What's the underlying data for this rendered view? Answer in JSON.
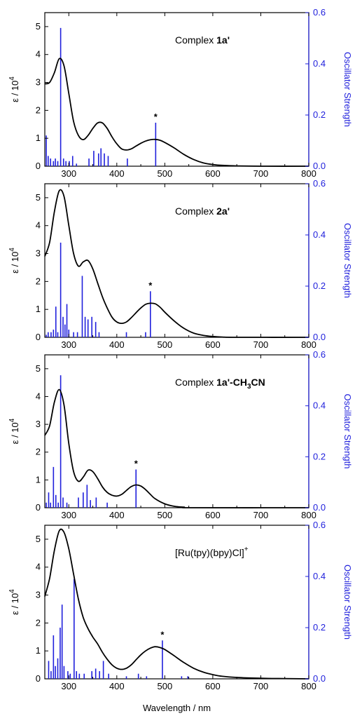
{
  "chart_data": [
    {
      "type": "line",
      "title": "Complex ",
      "title_bold": "1a'",
      "title_sub": "",
      "title_tail": "",
      "ylabel_left": "ε / 10",
      "ylabel_left_sup": "4",
      "ylabel_right": "Oscillator Strength",
      "xlim": [
        250,
        800
      ],
      "ylim_left": [
        0,
        5.5
      ],
      "ylim_right": [
        0,
        0.6
      ],
      "xticks": [
        300,
        400,
        500,
        600,
        700,
        800
      ],
      "yticks_left": [
        0,
        1,
        2,
        3,
        4,
        5
      ],
      "yticks_right": [
        "0.0",
        "0.2",
        "0.4",
        "0.6"
      ],
      "yticks_right_values": [
        0,
        0.2,
        0.4,
        0.6
      ],
      "absorption_curve": [
        [
          250,
          2.95
        ],
        [
          260,
          3.0
        ],
        [
          270,
          3.35
        ],
        [
          280,
          3.85
        ],
        [
          290,
          3.6
        ],
        [
          300,
          2.6
        ],
        [
          310,
          1.6
        ],
        [
          320,
          1.1
        ],
        [
          330,
          0.95
        ],
        [
          340,
          1.1
        ],
        [
          350,
          1.35
        ],
        [
          360,
          1.55
        ],
        [
          370,
          1.55
        ],
        [
          380,
          1.35
        ],
        [
          390,
          1.05
        ],
        [
          400,
          0.8
        ],
        [
          410,
          0.62
        ],
        [
          420,
          0.58
        ],
        [
          430,
          0.62
        ],
        [
          440,
          0.72
        ],
        [
          450,
          0.82
        ],
        [
          460,
          0.9
        ],
        [
          470,
          0.95
        ],
        [
          480,
          0.96
        ],
        [
          490,
          0.93
        ],
        [
          500,
          0.85
        ],
        [
          520,
          0.65
        ],
        [
          540,
          0.42
        ],
        [
          560,
          0.24
        ],
        [
          580,
          0.12
        ],
        [
          600,
          0.06
        ],
        [
          620,
          0.03
        ],
        [
          650,
          0.01
        ],
        [
          700,
          0.0
        ],
        [
          800,
          0.0
        ]
      ],
      "oscillator_sticks": [
        [
          253,
          0.12
        ],
        [
          257,
          0.04
        ],
        [
          262,
          0.03
        ],
        [
          268,
          0.02
        ],
        [
          272,
          0.03
        ],
        [
          277,
          0.02
        ],
        [
          283,
          0.54
        ],
        [
          289,
          0.03
        ],
        [
          294,
          0.02
        ],
        [
          301,
          0.02
        ],
        [
          308,
          0.04
        ],
        [
          316,
          0.01
        ],
        [
          342,
          0.03
        ],
        [
          352,
          0.06
        ],
        [
          362,
          0.05
        ],
        [
          367,
          0.07
        ],
        [
          374,
          0.05
        ],
        [
          382,
          0.04
        ],
        [
          422,
          0.03
        ],
        [
          481,
          0.17
        ]
      ],
      "annotation": "*",
      "annotation_x": 481
    },
    {
      "type": "line",
      "title": "Complex ",
      "title_bold": "2a'",
      "title_sub": "",
      "title_tail": "",
      "ylabel_left": "ε / 10",
      "ylabel_left_sup": "4",
      "ylabel_right": "Oscillator Strength",
      "xlim": [
        250,
        800
      ],
      "ylim_left": [
        0,
        5.5
      ],
      "ylim_right": [
        0,
        0.6
      ],
      "xticks": [
        300,
        400,
        500,
        600,
        700,
        800
      ],
      "yticks_left": [
        0,
        1,
        2,
        3,
        4,
        5
      ],
      "yticks_right": [
        "0.0",
        "0.2",
        "0.4",
        "0.6"
      ],
      "yticks_right_values": [
        0,
        0.2,
        0.4,
        0.6
      ],
      "absorption_curve": [
        [
          250,
          2.9
        ],
        [
          260,
          3.4
        ],
        [
          270,
          4.5
        ],
        [
          280,
          5.25
        ],
        [
          290,
          5.05
        ],
        [
          300,
          4.0
        ],
        [
          310,
          3.0
        ],
        [
          320,
          2.55
        ],
        [
          330,
          2.7
        ],
        [
          340,
          2.75
        ],
        [
          350,
          2.45
        ],
        [
          360,
          1.95
        ],
        [
          370,
          1.45
        ],
        [
          380,
          1.05
        ],
        [
          390,
          0.72
        ],
        [
          400,
          0.55
        ],
        [
          410,
          0.5
        ],
        [
          420,
          0.55
        ],
        [
          430,
          0.7
        ],
        [
          440,
          0.88
        ],
        [
          450,
          1.05
        ],
        [
          460,
          1.18
        ],
        [
          470,
          1.22
        ],
        [
          480,
          1.2
        ],
        [
          490,
          1.08
        ],
        [
          500,
          0.9
        ],
        [
          520,
          0.58
        ],
        [
          540,
          0.32
        ],
        [
          560,
          0.15
        ],
        [
          580,
          0.07
        ],
        [
          600,
          0.03
        ],
        [
          620,
          0.01
        ],
        [
          650,
          0.0
        ],
        [
          800,
          0.0
        ]
      ],
      "oscillator_sticks": [
        [
          253,
          0.01
        ],
        [
          257,
          0.02
        ],
        [
          263,
          0.02
        ],
        [
          268,
          0.03
        ],
        [
          273,
          0.12
        ],
        [
          277,
          0.02
        ],
        [
          283,
          0.37
        ],
        [
          288,
          0.08
        ],
        [
          292,
          0.05
        ],
        [
          296,
          0.13
        ],
        [
          300,
          0.03
        ],
        [
          310,
          0.02
        ],
        [
          318,
          0.02
        ],
        [
          328,
          0.24
        ],
        [
          334,
          0.08
        ],
        [
          340,
          0.07
        ],
        [
          348,
          0.08
        ],
        [
          356,
          0.06
        ],
        [
          363,
          0.02
        ],
        [
          420,
          0.02
        ],
        [
          460,
          0.02
        ],
        [
          470,
          0.18
        ]
      ],
      "annotation": "*",
      "annotation_x": 470
    },
    {
      "type": "line",
      "title": "Complex ",
      "title_bold": "1a'-CH",
      "title_sub": "3",
      "title_tail": "CN",
      "ylabel_left": "ε / 10",
      "ylabel_left_sup": "4",
      "ylabel_right": "Oscillator Strength",
      "xlim": [
        250,
        800
      ],
      "ylim_left": [
        0,
        5.5
      ],
      "ylim_right": [
        0,
        0.6
      ],
      "xticks": [
        300,
        400,
        500,
        600,
        700,
        800
      ],
      "yticks_left": [
        0,
        1,
        2,
        3,
        4,
        5
      ],
      "yticks_right": [
        "0.0",
        "0.2",
        "0.4",
        "0.6"
      ],
      "yticks_right_values": [
        0,
        0.2,
        0.4,
        0.6
      ],
      "absorption_curve": [
        [
          250,
          2.6
        ],
        [
          260,
          2.95
        ],
        [
          270,
          3.8
        ],
        [
          280,
          4.25
        ],
        [
          290,
          3.7
        ],
        [
          300,
          2.3
        ],
        [
          310,
          1.3
        ],
        [
          320,
          0.95
        ],
        [
          330,
          1.1
        ],
        [
          340,
          1.35
        ],
        [
          350,
          1.3
        ],
        [
          360,
          1.05
        ],
        [
          370,
          0.75
        ],
        [
          380,
          0.55
        ],
        [
          390,
          0.45
        ],
        [
          400,
          0.42
        ],
        [
          410,
          0.48
        ],
        [
          420,
          0.62
        ],
        [
          430,
          0.76
        ],
        [
          440,
          0.82
        ],
        [
          450,
          0.78
        ],
        [
          460,
          0.65
        ],
        [
          470,
          0.48
        ],
        [
          480,
          0.32
        ],
        [
          500,
          0.14
        ],
        [
          520,
          0.05
        ],
        [
          540,
          0.02
        ],
        [
          560,
          0.0
        ],
        [
          800,
          0.0
        ]
      ],
      "oscillator_sticks": [
        [
          253,
          0.02
        ],
        [
          258,
          0.06
        ],
        [
          262,
          0.02
        ],
        [
          268,
          0.16
        ],
        [
          273,
          0.05
        ],
        [
          278,
          0.02
        ],
        [
          283,
          0.52
        ],
        [
          288,
          0.04
        ],
        [
          296,
          0.02
        ],
        [
          320,
          0.04
        ],
        [
          330,
          0.06
        ],
        [
          338,
          0.09
        ],
        [
          345,
          0.03
        ],
        [
          357,
          0.04
        ],
        [
          380,
          0.02
        ],
        [
          440,
          0.15
        ]
      ],
      "annotation": "*",
      "annotation_x": 440
    },
    {
      "type": "line",
      "title": "[Ru(tpy)(bpy)Cl]",
      "title_bold": "",
      "title_sub": "",
      "title_tail": "",
      "title_sup": "+",
      "ylabel_left": "ε / 10",
      "ylabel_left_sup": "4",
      "ylabel_right": "Oscillator Strength",
      "xlabel": "Wavelength / nm",
      "xlim": [
        250,
        800
      ],
      "ylim_left": [
        0,
        5.5
      ],
      "ylim_right": [
        0,
        0.6
      ],
      "xticks": [
        300,
        400,
        500,
        600,
        700,
        800
      ],
      "yticks_left": [
        0,
        1,
        2,
        3,
        4,
        5
      ],
      "yticks_right": [
        "0.0",
        "0.2",
        "0.4",
        "0.6"
      ],
      "yticks_right_values": [
        0,
        0.2,
        0.4,
        0.6
      ],
      "absorption_curve": [
        [
          250,
          2.95
        ],
        [
          260,
          3.6
        ],
        [
          270,
          4.6
        ],
        [
          280,
          5.3
        ],
        [
          290,
          5.25
        ],
        [
          300,
          4.65
        ],
        [
          310,
          3.75
        ],
        [
          320,
          2.85
        ],
        [
          330,
          2.2
        ],
        [
          340,
          1.8
        ],
        [
          350,
          1.5
        ],
        [
          360,
          1.25
        ],
        [
          370,
          0.95
        ],
        [
          380,
          0.7
        ],
        [
          390,
          0.5
        ],
        [
          400,
          0.38
        ],
        [
          410,
          0.34
        ],
        [
          420,
          0.38
        ],
        [
          430,
          0.5
        ],
        [
          440,
          0.68
        ],
        [
          450,
          0.86
        ],
        [
          460,
          1.0
        ],
        [
          470,
          1.1
        ],
        [
          480,
          1.15
        ],
        [
          490,
          1.12
        ],
        [
          500,
          1.05
        ],
        [
          520,
          0.82
        ],
        [
          540,
          0.58
        ],
        [
          560,
          0.38
        ],
        [
          580,
          0.24
        ],
        [
          600,
          0.15
        ],
        [
          620,
          0.09
        ],
        [
          650,
          0.05
        ],
        [
          700,
          0.02
        ],
        [
          750,
          0.01
        ],
        [
          800,
          0.0
        ]
      ],
      "oscillator_sticks": [
        [
          258,
          0.07
        ],
        [
          263,
          0.03
        ],
        [
          268,
          0.17
        ],
        [
          272,
          0.05
        ],
        [
          277,
          0.08
        ],
        [
          282,
          0.2
        ],
        [
          286,
          0.29
        ],
        [
          290,
          0.05
        ],
        [
          298,
          0.03
        ],
        [
          303,
          0.02
        ],
        [
          311,
          0.39
        ],
        [
          316,
          0.03
        ],
        [
          322,
          0.02
        ],
        [
          332,
          0.02
        ],
        [
          348,
          0.03
        ],
        [
          356,
          0.04
        ],
        [
          364,
          0.03
        ],
        [
          372,
          0.07
        ],
        [
          383,
          0.02
        ],
        [
          420,
          0.01
        ],
        [
          445,
          0.02
        ],
        [
          462,
          0.01
        ],
        [
          495,
          0.15
        ],
        [
          535,
          0.01
        ],
        [
          548,
          0.01
        ]
      ],
      "annotation": "*",
      "annotation_x": 495
    }
  ],
  "colors": {
    "curve": "#000000",
    "sticks": "#1f1fdc",
    "right_axis": "#1f1fdc",
    "axis": "#000000"
  }
}
